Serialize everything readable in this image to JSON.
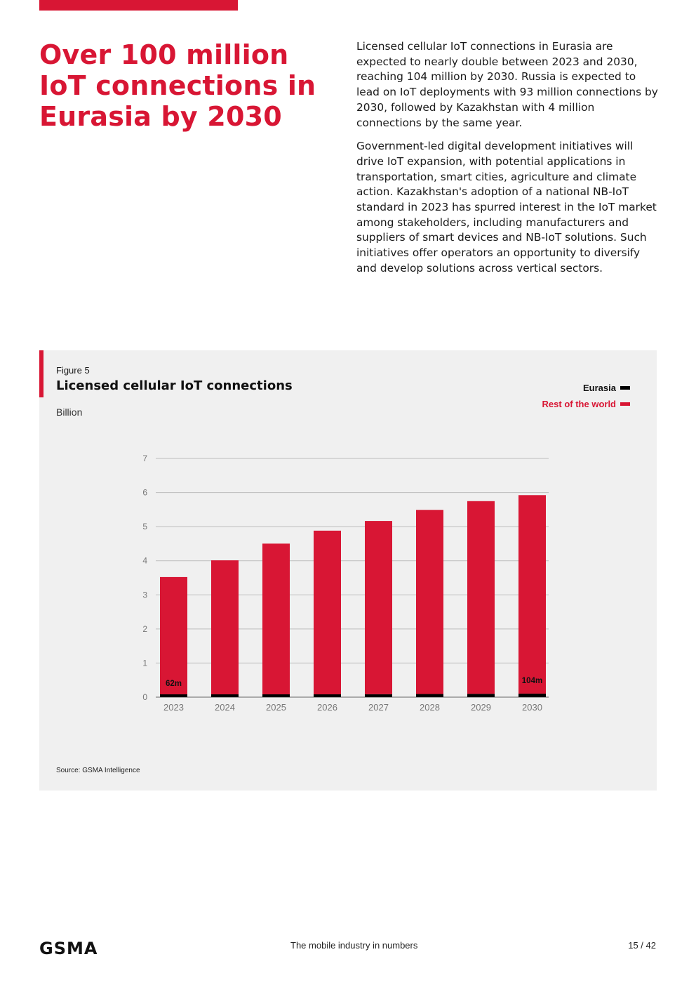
{
  "headline": "Over 100 million IoT connections in Eurasia by 2030",
  "paragraphs": [
    "Licensed cellular IoT connections in Eurasia are expected to nearly double between 2023 and 2030, reaching 104 million by 2030. Russia is expected to lead on IoT deployments with 93 million connections by 2030, followed by Kazakhstan with 4 million connections by the same year.",
    "Government-led digital development initiatives will drive IoT expansion, with potential applications in transportation, smart cities, agriculture and climate action. Kazakhstan's adoption of a national NB-IoT standard in 2023 has spurred interest in the IoT market among stakeholders, including manufacturers and suppliers of smart devices and NB-IoT solutions. Such initiatives offer operators an opportunity to diversify and develop solutions across vertical sectors."
  ],
  "figure": {
    "label": "Figure 5",
    "title": "Licensed cellular IoT connections",
    "unit": "Billion",
    "source": "Source: GSMA Intelligence"
  },
  "legend": [
    {
      "name": "Eurasia",
      "color": "#000000"
    },
    {
      "name": "Rest of the world",
      "color": "#d81634"
    }
  ],
  "chart_data": {
    "type": "bar",
    "stacked": true,
    "title": "Licensed cellular IoT connections",
    "ylabel": "Billion",
    "xlabel": "",
    "ylim": [
      0,
      7
    ],
    "yticks": [
      0,
      1,
      2,
      3,
      4,
      5,
      6,
      7
    ],
    "categories": [
      "2023",
      "2024",
      "2025",
      "2026",
      "2027",
      "2028",
      "2029",
      "2030"
    ],
    "series": [
      {
        "name": "Eurasia",
        "color": "#000000",
        "values": [
          0.062,
          0.068,
          0.074,
          0.08,
          0.086,
          0.092,
          0.098,
          0.104
        ]
      },
      {
        "name": "Rest of the world",
        "color": "#d81634",
        "values": [
          3.44,
          3.93,
          4.42,
          4.8,
          5.08,
          5.4,
          5.65,
          5.82
        ]
      }
    ],
    "annotations": [
      {
        "category": "2023",
        "text": "62m"
      },
      {
        "category": "2030",
        "text": "104m"
      }
    ]
  },
  "footer": {
    "logo": "GSMA",
    "title": "The mobile industry in numbers",
    "page": "15 / 42"
  }
}
